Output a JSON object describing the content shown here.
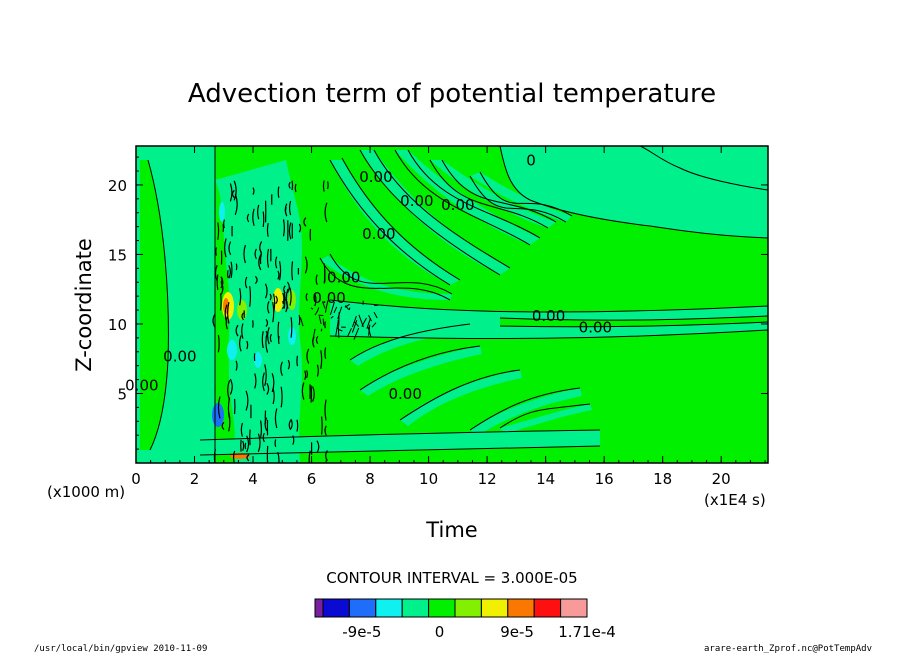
{
  "chart_data": {
    "type": "heatmap",
    "title": "Advection term of potential temperature",
    "xlabel": "Time",
    "ylabel": "Z-coordinate",
    "x_unit": "(x1E4 s)",
    "y_unit": "(x1000 m)",
    "xlim": [
      0,
      21.6
    ],
    "ylim": [
      0,
      22.8
    ],
    "x_ticks": [
      0,
      2,
      4,
      6,
      8,
      10,
      12,
      14,
      16,
      18,
      20
    ],
    "y_ticks": [
      5,
      10,
      15,
      20
    ],
    "x_tick_labels": [
      "0",
      "2",
      "4",
      "6",
      "8",
      "10",
      "12",
      "14",
      "16",
      "18",
      "20"
    ],
    "y_tick_labels": [
      "5",
      "10",
      "15",
      "20"
    ],
    "contour_interval": "CONTOUR INTERVAL = 3.000E-05",
    "colorbar": {
      "colors": [
        "#7a1fa0",
        "#0a0ad2",
        "#1e6efa",
        "#0ff0f0",
        "#00f08c",
        "#00f000",
        "#82f000",
        "#f0f000",
        "#fa7800",
        "#ff1010",
        "#f89a9a"
      ],
      "tick_labels": [
        "-9e-5",
        "0",
        "9e-5",
        "1.71e-4"
      ],
      "tick_values": [
        -9e-05,
        0,
        9e-05,
        0.000171
      ],
      "levels": [
        -0.000135,
        -0.000105,
        -7.5e-05,
        -4.5e-05,
        -1.5e-05,
        1.5e-05,
        4.5e-05,
        7.5e-05,
        0.000105,
        0.000135,
        0.000171
      ]
    },
    "contour_labels": [
      {
        "text": "0",
        "x": 13.5,
        "y": 21.4
      },
      {
        "text": "0.00",
        "x": 8.2,
        "y": 20.2
      },
      {
        "text": "0.00",
        "x": 9.6,
        "y": 18.5
      },
      {
        "text": "0.00",
        "x": 11.0,
        "y": 18.2
      },
      {
        "text": "0.00",
        "x": 8.3,
        "y": 16.1
      },
      {
        "text": "0.00",
        "x": 7.1,
        "y": 13.0
      },
      {
        "text": "0.00",
        "x": 6.6,
        "y": 11.5
      },
      {
        "text": "0.00",
        "x": 14.1,
        "y": 10.2
      },
      {
        "text": "0.00",
        "x": 15.7,
        "y": 9.4
      },
      {
        "text": "0.00",
        "x": 1.5,
        "y": 7.3
      },
      {
        "text": "0.00",
        "x": 0.2,
        "y": 5.2
      },
      {
        "text": "0.00",
        "x": 9.2,
        "y": 4.6
      }
    ],
    "grid": false,
    "legend": "colorbar-bottom"
  },
  "footer": {
    "left": "/usr/local/bin/gpview  2010-11-09",
    "right": "arare-earth_Zprof.nc@PotTempAdv"
  }
}
